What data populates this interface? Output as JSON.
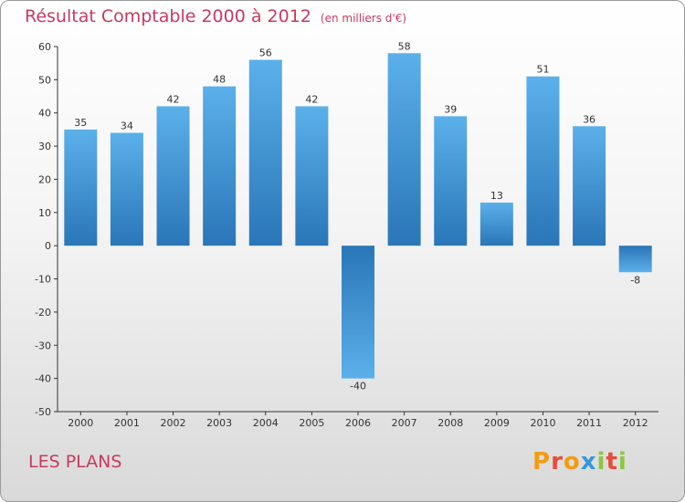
{
  "title": "Résultat Comptable 2000 à 2012",
  "subtitle": "(en milliers d'€)",
  "commune": "LES PLANS",
  "brand": {
    "letters": [
      "P",
      "r",
      "o",
      "x",
      "i",
      "t",
      "i"
    ],
    "colors": [
      "#f39c12",
      "#e74c3c",
      "#f39c12",
      "#3498db",
      "#8dc63f",
      "#e74c3c",
      "#8dc63f"
    ]
  },
  "chart_data": {
    "type": "bar",
    "title": "Résultat Comptable 2000 à 2012",
    "ylabel": "(en milliers d'€)",
    "categories": [
      "2000",
      "2001",
      "2002",
      "2003",
      "2004",
      "2005",
      "2006",
      "2007",
      "2008",
      "2009",
      "2010",
      "2011",
      "2012"
    ],
    "values": [
      35,
      34,
      42,
      48,
      56,
      42,
      -40,
      58,
      39,
      13,
      51,
      36,
      -8
    ],
    "ylim": [
      -50,
      60
    ],
    "yticks": [
      60,
      50,
      40,
      30,
      20,
      10,
      0,
      -10,
      -20,
      -30,
      -40,
      -50
    ],
    "grid": false,
    "colors": {
      "bar_dark": "#2a76b8",
      "bar_light": "#5bb0ea"
    }
  }
}
